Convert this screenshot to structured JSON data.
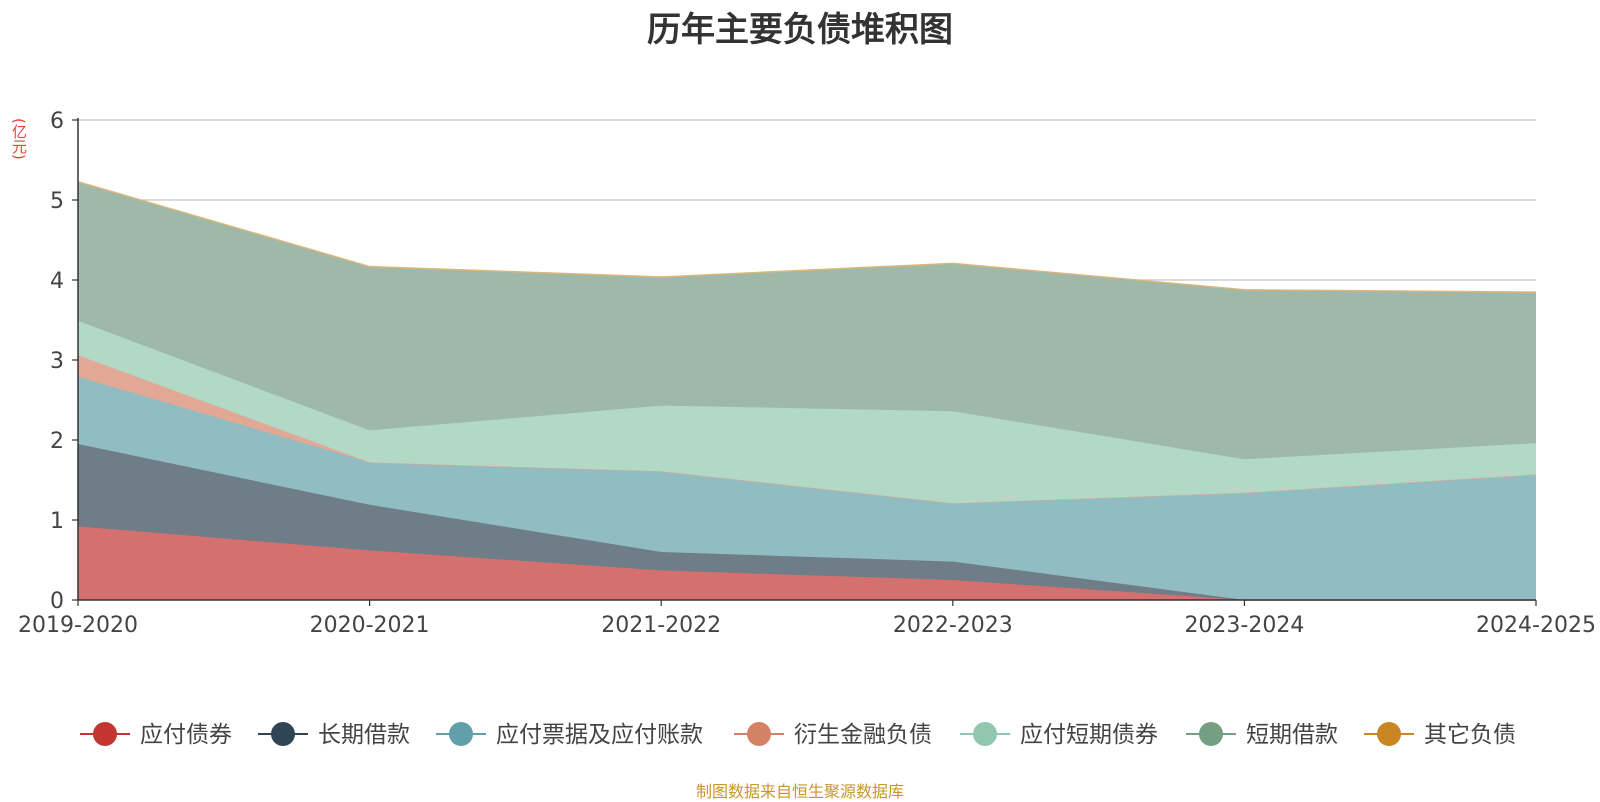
{
  "chart_data": {
    "type": "area",
    "stacked": true,
    "title": "历年主要负债堆积图",
    "ylabel": "(亿元)",
    "xlabel": "",
    "ylim": [
      0,
      6
    ],
    "yticks": [
      "0",
      "1",
      "2",
      "3",
      "4",
      "5",
      "6"
    ],
    "categories": [
      "2019-2020",
      "2020-2021",
      "2021-2022",
      "2022-2023",
      "2023-2024",
      "2024-2025"
    ],
    "grid": true,
    "legend_position": "bottom",
    "series": [
      {
        "name": "应付债券",
        "color": "#c23531",
        "fill": "#d4706e",
        "values": [
          0.92,
          0.62,
          0.37,
          0.25,
          0.0,
          0.0
        ]
      },
      {
        "name": "长期借款",
        "color": "#2f4554",
        "fill": "#6e7d87",
        "values": [
          1.03,
          0.57,
          0.23,
          0.23,
          0.0,
          0.0
        ]
      },
      {
        "name": "应付票据及应付账款",
        "color": "#61a0a8",
        "fill": "#90bcc2",
        "values": [
          0.84,
          0.53,
          1.01,
          0.73,
          1.34,
          1.57
        ]
      },
      {
        "name": "衍生金融负债",
        "color": "#d48265",
        "fill": "#e2a895",
        "values": [
          0.27,
          0.0,
          0.0,
          0.0,
          0.0,
          0.0
        ]
      },
      {
        "name": "应付短期债券",
        "color": "#91c7ae",
        "fill": "#b2d8c6",
        "values": [
          0.43,
          0.4,
          0.82,
          1.15,
          0.42,
          0.39
        ]
      },
      {
        "name": "短期借款",
        "color": "#749f83",
        "fill": "#9eb9a8",
        "values": [
          1.73,
          2.04,
          1.6,
          1.84,
          2.11,
          1.88
        ]
      },
      {
        "name": "其它负债",
        "color": "#ca8622",
        "fill": "#e0b57a",
        "values": [
          0.01,
          0.01,
          0.01,
          0.01,
          0.01,
          0.01
        ]
      }
    ]
  },
  "source_note": "制图数据来自恒生聚源数据库"
}
